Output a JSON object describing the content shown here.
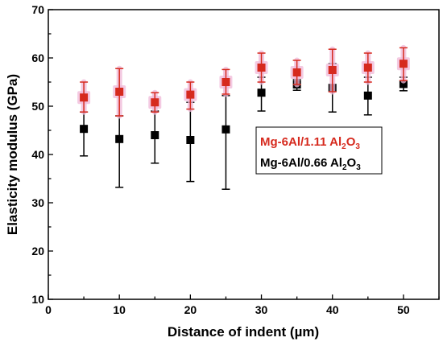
{
  "chart_data": {
    "type": "scatter",
    "title": "",
    "xlabel": "Distance of indent (µm)",
    "ylabel": "Elasticity modulus (GPa)",
    "xlim": [
      0,
      55
    ],
    "ylim": [
      10,
      70
    ],
    "xticks": [
      0,
      10,
      20,
      30,
      40,
      50
    ],
    "yticks": [
      10,
      20,
      30,
      40,
      50,
      60,
      70
    ],
    "error_bars": true,
    "grid": false,
    "legend_position": "center-right",
    "series": [
      {
        "name": "Mg-6Al/1.11 Al2O3",
        "legend_main": "Mg-6Al/1.11 Al",
        "legend_sub": "2",
        "legend_end": "O",
        "legend_sub2": "3",
        "color": "#d62a1e",
        "halo": "#f0b8d8",
        "x": [
          5,
          10,
          15,
          20,
          25,
          30,
          35,
          40,
          45,
          50
        ],
        "y": [
          51.8,
          53.0,
          50.8,
          52.4,
          55.0,
          58.0,
          57.0,
          57.5,
          58.0,
          58.8
        ],
        "err_low": [
          3.0,
          5.0,
          2.0,
          3.0,
          2.5,
          3.0,
          2.5,
          4.5,
          3.0,
          3.5
        ],
        "err_high": [
          3.2,
          4.8,
          2.0,
          2.6,
          2.6,
          3.0,
          2.5,
          4.3,
          3.0,
          3.3
        ]
      },
      {
        "name": "Mg-6Al/0.66 Al2O3",
        "legend_main": "Mg-6Al/0.66 Al",
        "legend_sub": "2",
        "legend_end": "O",
        "legend_sub2": "3",
        "color": "#000000",
        "x": [
          5,
          10,
          15,
          20,
          25,
          30,
          35,
          40,
          45,
          50
        ],
        "y": [
          45.3,
          43.2,
          44.0,
          43.0,
          45.2,
          52.8,
          54.5,
          53.8,
          52.2,
          54.6
        ],
        "err_low": [
          5.6,
          10.0,
          5.8,
          8.6,
          12.4,
          3.8,
          1.2,
          5.0,
          4.0,
          1.4
        ],
        "err_high": [
          3.5,
          4.8,
          5.0,
          7.8,
          7.0,
          3.2,
          1.0,
          5.0,
          3.8,
          1.4
        ]
      }
    ]
  }
}
